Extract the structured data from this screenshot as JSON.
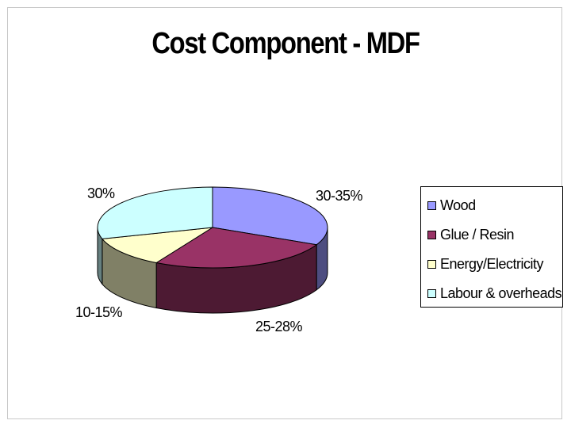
{
  "chart_data": {
    "type": "pie",
    "title": "Cost Component - MDF",
    "categories": [
      "Wood",
      "Glue / Resin",
      "Energy/Electricity",
      "Labour & overheads"
    ],
    "value_labels": [
      "30-35%",
      "25-28%",
      "10-15%",
      "30%"
    ],
    "values": [
      32.5,
      26.5,
      12.5,
      30
    ],
    "colors": [
      "#9999ff",
      "#993366",
      "#ffffcc",
      "#ccffff"
    ],
    "side_colors": [
      "#4d4d80",
      "#4d1a33",
      "#808066",
      "#668080"
    ],
    "legend_position": "right",
    "style": "3d"
  }
}
